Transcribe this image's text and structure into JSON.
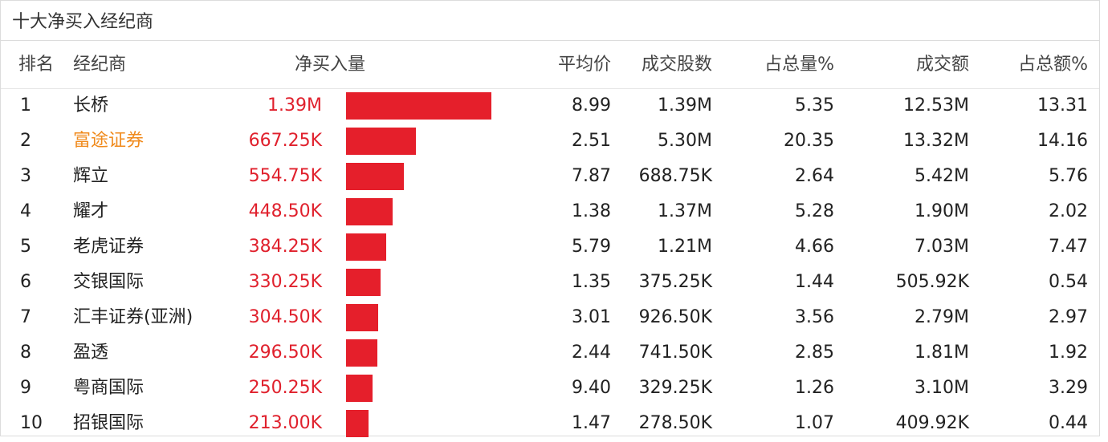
{
  "title": "十大净买入经纪商",
  "headers": {
    "rank": "排名",
    "broker": "经纪商",
    "net_buy": "净买入量",
    "avg_price": "平均价",
    "volume": "成交股数",
    "volume_pct": "占总量%",
    "amount": "成交额",
    "amount_pct": "占总额%"
  },
  "colors": {
    "bar": "#e51f2b",
    "net_text": "#e0212d",
    "highlight_broker": "#f08a1c"
  },
  "rows": [
    {
      "rank": "1",
      "broker": "长桥",
      "net_buy": "1.39M",
      "net_value": 1390000,
      "avg_price": "8.99",
      "volume": "1.39M",
      "volume_pct": "5.35",
      "amount": "12.53M",
      "amount_pct": "13.31",
      "highlight": false
    },
    {
      "rank": "2",
      "broker": "富途证券",
      "net_buy": "667.25K",
      "net_value": 667250,
      "avg_price": "2.51",
      "volume": "5.30M",
      "volume_pct": "20.35",
      "amount": "13.32M",
      "amount_pct": "14.16",
      "highlight": true
    },
    {
      "rank": "3",
      "broker": "辉立",
      "net_buy": "554.75K",
      "net_value": 554750,
      "avg_price": "7.87",
      "volume": "688.75K",
      "volume_pct": "2.64",
      "amount": "5.42M",
      "amount_pct": "5.76",
      "highlight": false
    },
    {
      "rank": "4",
      "broker": "耀才",
      "net_buy": "448.50K",
      "net_value": 448500,
      "avg_price": "1.38",
      "volume": "1.37M",
      "volume_pct": "5.28",
      "amount": "1.90M",
      "amount_pct": "2.02",
      "highlight": false
    },
    {
      "rank": "5",
      "broker": "老虎证券",
      "net_buy": "384.25K",
      "net_value": 384250,
      "avg_price": "5.79",
      "volume": "1.21M",
      "volume_pct": "4.66",
      "amount": "7.03M",
      "amount_pct": "7.47",
      "highlight": false
    },
    {
      "rank": "6",
      "broker": "交银国际",
      "net_buy": "330.25K",
      "net_value": 330250,
      "avg_price": "1.35",
      "volume": "375.25K",
      "volume_pct": "1.44",
      "amount": "505.92K",
      "amount_pct": "0.54",
      "highlight": false
    },
    {
      "rank": "7",
      "broker": "汇丰证券(亚洲)",
      "net_buy": "304.50K",
      "net_value": 304500,
      "avg_price": "3.01",
      "volume": "926.50K",
      "volume_pct": "3.56",
      "amount": "2.79M",
      "amount_pct": "2.97",
      "highlight": false
    },
    {
      "rank": "8",
      "broker": "盈透",
      "net_buy": "296.50K",
      "net_value": 296500,
      "avg_price": "2.44",
      "volume": "741.50K",
      "volume_pct": "2.85",
      "amount": "1.81M",
      "amount_pct": "1.92",
      "highlight": false
    },
    {
      "rank": "9",
      "broker": "粤商国际",
      "net_buy": "250.25K",
      "net_value": 250250,
      "avg_price": "9.40",
      "volume": "329.25K",
      "volume_pct": "1.26",
      "amount": "3.10M",
      "amount_pct": "3.29",
      "highlight": false
    },
    {
      "rank": "10",
      "broker": "招银国际",
      "net_buy": "213.00K",
      "net_value": 213000,
      "avg_price": "1.47",
      "volume": "278.50K",
      "volume_pct": "1.07",
      "amount": "409.92K",
      "amount_pct": "0.44",
      "highlight": false
    }
  ]
}
